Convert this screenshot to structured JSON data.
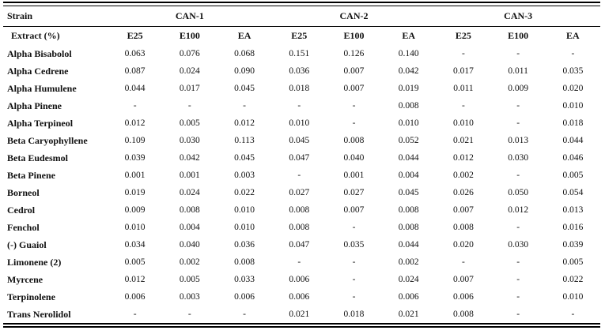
{
  "table": {
    "corner_label": "Strain",
    "extract_label": "Extract (%)",
    "strains": [
      "CAN-1",
      "CAN-2",
      "CAN-3"
    ],
    "extract_columns": [
      "E25",
      "E100",
      "EA",
      "E25",
      "E100",
      "EA",
      "E25",
      "E100",
      "EA"
    ],
    "rows": [
      {
        "compound": "Alpha Bisabolol",
        "values": [
          "0.063",
          "0.076",
          "0.068",
          "0.151",
          "0.126",
          "0.140",
          "-",
          "-",
          "-"
        ]
      },
      {
        "compound": "Alpha Cedrene",
        "values": [
          "0.087",
          "0.024",
          "0.090",
          "0.036",
          "0.007",
          "0.042",
          "0.017",
          "0.011",
          "0.035"
        ]
      },
      {
        "compound": "Alpha Humulene",
        "values": [
          "0.044",
          "0.017",
          "0.045",
          "0.018",
          "0.007",
          "0.019",
          "0.011",
          "0.009",
          "0.020"
        ]
      },
      {
        "compound": "Alpha Pinene",
        "values": [
          "-",
          "-",
          "-",
          "-",
          "-",
          "0.008",
          "-",
          "-",
          "0.010"
        ]
      },
      {
        "compound": "Alpha Terpineol",
        "values": [
          "0.012",
          "0.005",
          "0.012",
          "0.010",
          "-",
          "0.010",
          "0.010",
          "-",
          "0.018"
        ]
      },
      {
        "compound": "Beta Caryophyllene",
        "values": [
          "0.109",
          "0.030",
          "0.113",
          "0.045",
          "0.008",
          "0.052",
          "0.021",
          "0.013",
          "0.044"
        ]
      },
      {
        "compound": "Beta Eudesmol",
        "values": [
          "0.039",
          "0.042",
          "0.045",
          "0.047",
          "0.040",
          "0.044",
          "0.012",
          "0.030",
          "0.046"
        ]
      },
      {
        "compound": "Beta Pinene",
        "values": [
          "0.001",
          "0.001",
          "0.003",
          "-",
          "0.001",
          "0.004",
          "0.002",
          "-",
          "0.005"
        ]
      },
      {
        "compound": "Borneol",
        "values": [
          "0.019",
          "0.024",
          "0.022",
          "0.027",
          "0.027",
          "0.045",
          "0.026",
          "0.050",
          "0.054"
        ]
      },
      {
        "compound": "Cedrol",
        "values": [
          "0.009",
          "0.008",
          "0.010",
          "0.008",
          "0.007",
          "0.008",
          "0.007",
          "0.012",
          "0.013"
        ]
      },
      {
        "compound": "Fenchol",
        "values": [
          "0.010",
          "0.004",
          "0.010",
          "0.008",
          "-",
          "0.008",
          "0.008",
          "-",
          "0.016"
        ]
      },
      {
        "compound": "(-) Guaiol",
        "values": [
          "0.034",
          "0.040",
          "0.036",
          "0.047",
          "0.035",
          "0.044",
          "0.020",
          "0.030",
          "0.039"
        ]
      },
      {
        "compound": "Limonene (2)",
        "values": [
          "0.005",
          "0.002",
          "0.008",
          "-",
          "-",
          "0.002",
          "-",
          "-",
          "0.005"
        ]
      },
      {
        "compound": "Myrcene",
        "values": [
          "0.012",
          "0.005",
          "0.033",
          "0.006",
          "-",
          "0.024",
          "0.007",
          "-",
          "0.022"
        ]
      },
      {
        "compound": "Terpinolene",
        "values": [
          "0.006",
          "0.003",
          "0.006",
          "0.006",
          "-",
          "0.006",
          "0.006",
          "-",
          "0.010"
        ]
      },
      {
        "compound": "Trans Nerolidol",
        "values": [
          "-",
          "-",
          "-",
          "0.021",
          "0.018",
          "0.021",
          "0.008",
          "-",
          "-"
        ]
      }
    ]
  }
}
